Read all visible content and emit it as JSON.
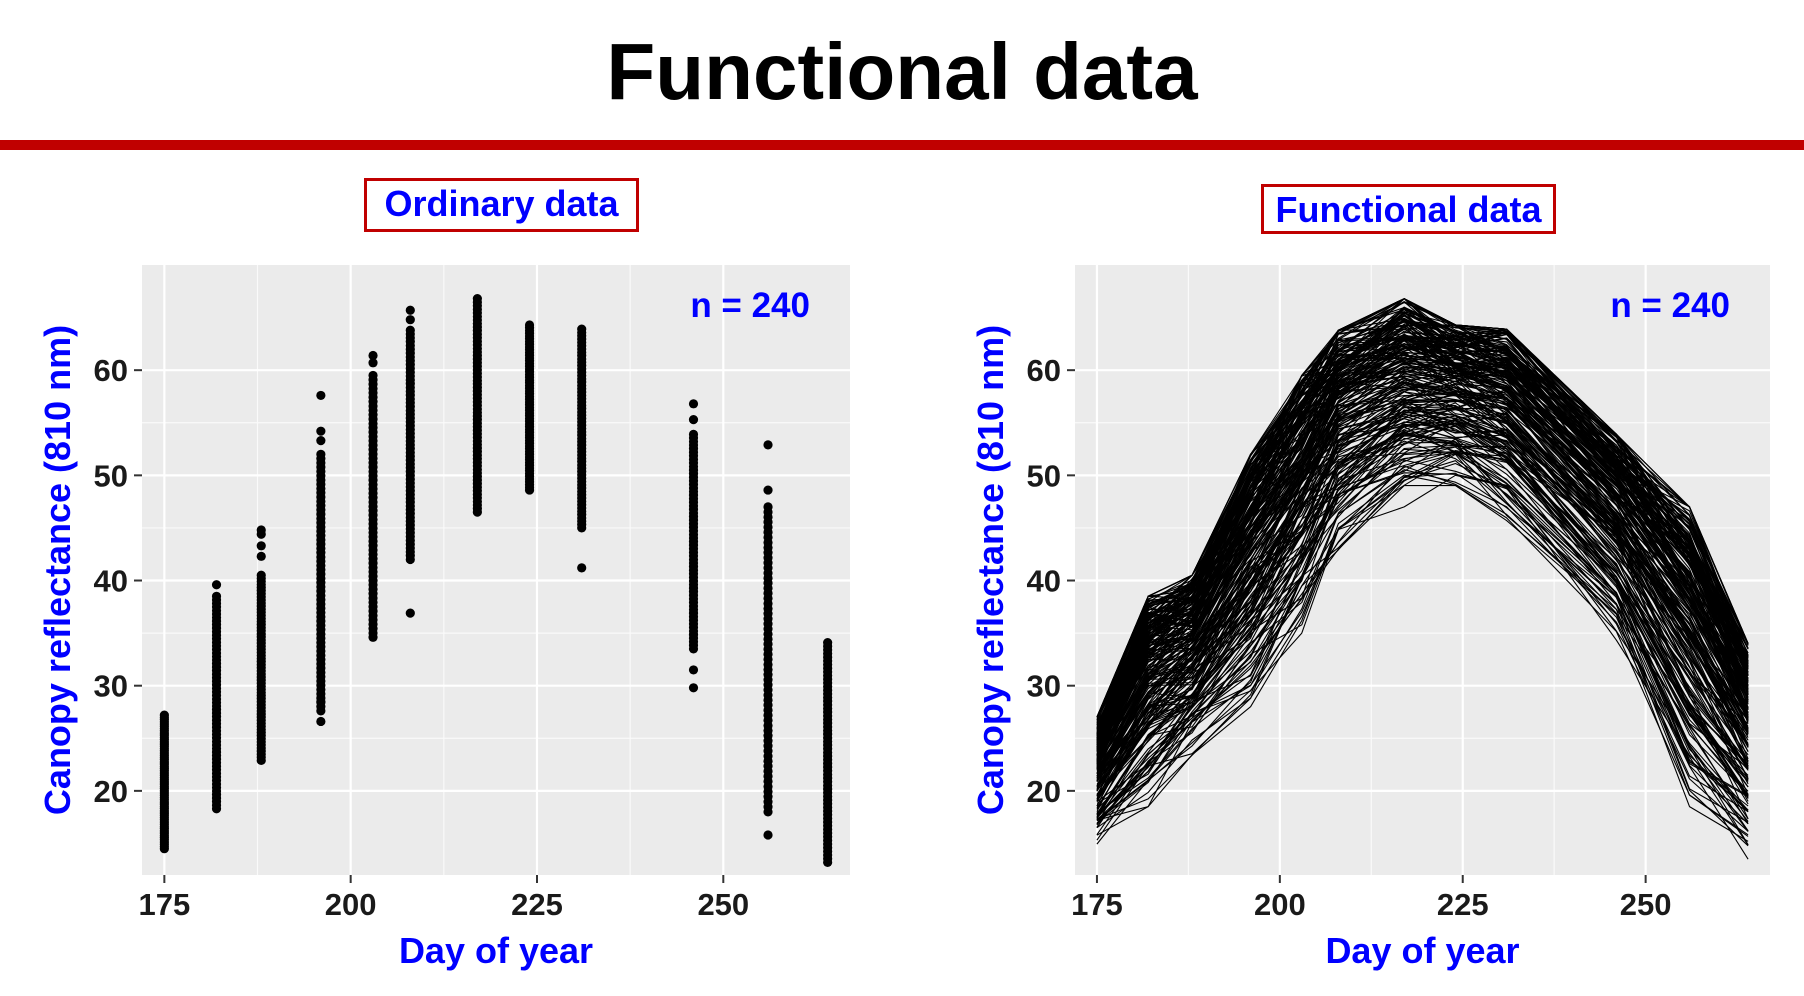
{
  "title": "Functional data",
  "colors": {
    "divider": "#c00000",
    "accent": "#0000ff",
    "panel_bg": "#ebebeb"
  },
  "chart_data": [
    {
      "type": "scatter",
      "title": "Ordinary data",
      "xlabel": "Day of year",
      "ylabel": "Canopy reflectance (810 nm)",
      "xlim": [
        172,
        267
      ],
      "ylim": [
        12,
        70
      ],
      "xticks": [
        175,
        200,
        225,
        250
      ],
      "yticks": [
        20,
        30,
        40,
        50,
        60
      ],
      "annotation": "n = 240",
      "grid": true,
      "days": [
        {
          "x": 175,
          "min": 14.5,
          "max": 27.2,
          "outliers": []
        },
        {
          "x": 182,
          "min": 18.3,
          "max": 38.5,
          "outliers": [
            39.6
          ]
        },
        {
          "x": 188,
          "min": 22.9,
          "max": 40.5,
          "outliers": [
            42.3,
            43.3,
            44.4,
            44.8
          ]
        },
        {
          "x": 196,
          "min": 27.6,
          "max": 52.0,
          "outliers": [
            26.6,
            28.5,
            53.3,
            54.2,
            57.6
          ]
        },
        {
          "x": 203,
          "min": 34.6,
          "max": 59.5,
          "outliers": [
            60.7,
            61.4
          ]
        },
        {
          "x": 208,
          "min": 42.0,
          "max": 63.8,
          "outliers": [
            36.9,
            64.8,
            65.7
          ]
        },
        {
          "x": 217,
          "min": 46.5,
          "max": 66.8,
          "outliers": []
        },
        {
          "x": 224,
          "min": 48.6,
          "max": 64.3,
          "outliers": []
        },
        {
          "x": 231,
          "min": 45.0,
          "max": 63.9,
          "outliers": [
            41.2
          ]
        },
        {
          "x": 246,
          "min": 33.5,
          "max": 53.9,
          "outliers": [
            29.8,
            31.5,
            55.3,
            56.8
          ]
        },
        {
          "x": 256,
          "min": 18.0,
          "max": 47.0,
          "outliers": [
            15.8,
            48.6,
            52.9
          ]
        },
        {
          "x": 264,
          "min": 13.2,
          "max": 34.1,
          "outliers": []
        }
      ]
    },
    {
      "type": "line",
      "title": "Functional data",
      "xlabel": "Day of year",
      "ylabel": "Canopy reflectance (810 nm)",
      "xlim": [
        172,
        267
      ],
      "ylim": [
        12,
        70
      ],
      "xticks": [
        175,
        200,
        225,
        250
      ],
      "yticks": [
        20,
        30,
        40,
        50,
        60
      ],
      "annotation": "n = 240",
      "grid": true,
      "n_curves": 240,
      "x": [
        175,
        182,
        188,
        196,
        203,
        208,
        217,
        224,
        231,
        246,
        256,
        264
      ],
      "curve_low": [
        14.8,
        18.5,
        23.2,
        28.0,
        35.0,
        42.5,
        47.0,
        49.0,
        45.5,
        34.0,
        18.5,
        13.5
      ],
      "curve_high": [
        27.0,
        38.5,
        40.5,
        52.0,
        59.5,
        63.8,
        66.8,
        64.3,
        63.9,
        53.9,
        47.0,
        34.0
      ]
    }
  ]
}
